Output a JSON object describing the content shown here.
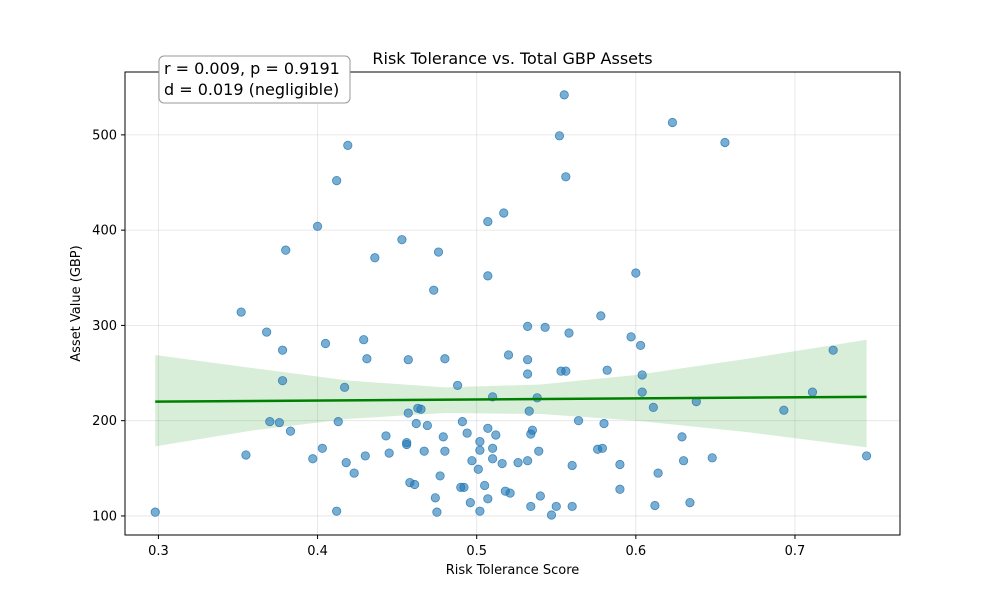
{
  "chart_data": {
    "type": "scatter",
    "title": "Risk Tolerance vs. Total GBP Assets",
    "xlabel": "Risk Tolerance Score",
    "ylabel": "Asset Value (GBP)",
    "xlim": [
      0.279,
      0.766
    ],
    "ylim": [
      80,
      566
    ],
    "xticks": [
      0.3,
      0.4,
      0.5,
      0.6,
      0.7
    ],
    "xtick_labels": [
      "0.3",
      "0.4",
      "0.5",
      "0.6",
      "0.7"
    ],
    "yticks": [
      100,
      200,
      300,
      400,
      500
    ],
    "ytick_labels": [
      "100",
      "200",
      "300",
      "400",
      "500"
    ],
    "grid": true,
    "point_color": "#1f77b4",
    "regression": {
      "color": "#008000",
      "ci_color": "#2ca02c",
      "x": [
        0.298,
        0.745
      ],
      "y": [
        220,
        225
      ],
      "ci": [
        {
          "x": 0.298,
          "lo": 173,
          "hi": 269
        },
        {
          "x": 0.36,
          "lo": 190,
          "hi": 255
        },
        {
          "x": 0.42,
          "lo": 202,
          "hi": 242
        },
        {
          "x": 0.48,
          "lo": 208,
          "hi": 235
        },
        {
          "x": 0.54,
          "lo": 207,
          "hi": 238
        },
        {
          "x": 0.6,
          "lo": 200,
          "hi": 248
        },
        {
          "x": 0.67,
          "lo": 188,
          "hi": 265
        },
        {
          "x": 0.745,
          "lo": 172,
          "hi": 285
        }
      ]
    },
    "annotation": {
      "line1": "r = 0.009, p = 0.9191",
      "line2": "d = 0.019 (negligible)",
      "position": "top-left"
    },
    "points": [
      {
        "x": 0.298,
        "y": 104
      },
      {
        "x": 0.352,
        "y": 314
      },
      {
        "x": 0.355,
        "y": 164
      },
      {
        "x": 0.368,
        "y": 293
      },
      {
        "x": 0.37,
        "y": 199
      },
      {
        "x": 0.376,
        "y": 198
      },
      {
        "x": 0.378,
        "y": 274
      },
      {
        "x": 0.378,
        "y": 242
      },
      {
        "x": 0.38,
        "y": 379
      },
      {
        "x": 0.383,
        "y": 189
      },
      {
        "x": 0.397,
        "y": 160
      },
      {
        "x": 0.4,
        "y": 404
      },
      {
        "x": 0.403,
        "y": 171
      },
      {
        "x": 0.405,
        "y": 281
      },
      {
        "x": 0.412,
        "y": 452
      },
      {
        "x": 0.413,
        "y": 199
      },
      {
        "x": 0.412,
        "y": 105
      },
      {
        "x": 0.417,
        "y": 235
      },
      {
        "x": 0.419,
        "y": 489
      },
      {
        "x": 0.418,
        "y": 156
      },
      {
        "x": 0.423,
        "y": 145
      },
      {
        "x": 0.429,
        "y": 285
      },
      {
        "x": 0.431,
        "y": 265
      },
      {
        "x": 0.43,
        "y": 163
      },
      {
        "x": 0.436,
        "y": 371
      },
      {
        "x": 0.443,
        "y": 184
      },
      {
        "x": 0.445,
        "y": 166
      },
      {
        "x": 0.453,
        "y": 390
      },
      {
        "x": 0.456,
        "y": 175
      },
      {
        "x": 0.456,
        "y": 177
      },
      {
        "x": 0.457,
        "y": 208
      },
      {
        "x": 0.457,
        "y": 264
      },
      {
        "x": 0.458,
        "y": 135
      },
      {
        "x": 0.461,
        "y": 133
      },
      {
        "x": 0.462,
        "y": 197
      },
      {
        "x": 0.463,
        "y": 213
      },
      {
        "x": 0.465,
        "y": 212
      },
      {
        "x": 0.467,
        "y": 168
      },
      {
        "x": 0.469,
        "y": 195
      },
      {
        "x": 0.473,
        "y": 337
      },
      {
        "x": 0.474,
        "y": 119
      },
      {
        "x": 0.475,
        "y": 104
      },
      {
        "x": 0.476,
        "y": 377
      },
      {
        "x": 0.477,
        "y": 142
      },
      {
        "x": 0.479,
        "y": 183
      },
      {
        "x": 0.48,
        "y": 168
      },
      {
        "x": 0.48,
        "y": 265
      },
      {
        "x": 0.488,
        "y": 237
      },
      {
        "x": 0.49,
        "y": 130
      },
      {
        "x": 0.491,
        "y": 199
      },
      {
        "x": 0.492,
        "y": 130
      },
      {
        "x": 0.494,
        "y": 187
      },
      {
        "x": 0.496,
        "y": 114
      },
      {
        "x": 0.497,
        "y": 158
      },
      {
        "x": 0.501,
        "y": 149
      },
      {
        "x": 0.502,
        "y": 178
      },
      {
        "x": 0.502,
        "y": 169
      },
      {
        "x": 0.502,
        "y": 105
      },
      {
        "x": 0.505,
        "y": 132
      },
      {
        "x": 0.507,
        "y": 409
      },
      {
        "x": 0.507,
        "y": 352
      },
      {
        "x": 0.507,
        "y": 192
      },
      {
        "x": 0.507,
        "y": 118
      },
      {
        "x": 0.51,
        "y": 225
      },
      {
        "x": 0.51,
        "y": 171
      },
      {
        "x": 0.51,
        "y": 160
      },
      {
        "x": 0.512,
        "y": 185
      },
      {
        "x": 0.516,
        "y": 155
      },
      {
        "x": 0.517,
        "y": 418
      },
      {
        "x": 0.518,
        "y": 126
      },
      {
        "x": 0.52,
        "y": 269
      },
      {
        "x": 0.521,
        "y": 124
      },
      {
        "x": 0.526,
        "y": 156
      },
      {
        "x": 0.532,
        "y": 299
      },
      {
        "x": 0.532,
        "y": 264
      },
      {
        "x": 0.532,
        "y": 249
      },
      {
        "x": 0.532,
        "y": 158
      },
      {
        "x": 0.533,
        "y": 210
      },
      {
        "x": 0.534,
        "y": 186
      },
      {
        "x": 0.535,
        "y": 190
      },
      {
        "x": 0.534,
        "y": 110
      },
      {
        "x": 0.538,
        "y": 224
      },
      {
        "x": 0.539,
        "y": 168
      },
      {
        "x": 0.54,
        "y": 121
      },
      {
        "x": 0.543,
        "y": 298
      },
      {
        "x": 0.547,
        "y": 101
      },
      {
        "x": 0.55,
        "y": 110
      },
      {
        "x": 0.552,
        "y": 499
      },
      {
        "x": 0.553,
        "y": 252
      },
      {
        "x": 0.555,
        "y": 542
      },
      {
        "x": 0.556,
        "y": 252
      },
      {
        "x": 0.556,
        "y": 456
      },
      {
        "x": 0.558,
        "y": 292
      },
      {
        "x": 0.56,
        "y": 153
      },
      {
        "x": 0.56,
        "y": 110
      },
      {
        "x": 0.564,
        "y": 200
      },
      {
        "x": 0.576,
        "y": 170
      },
      {
        "x": 0.578,
        "y": 310
      },
      {
        "x": 0.579,
        "y": 171
      },
      {
        "x": 0.58,
        "y": 197
      },
      {
        "x": 0.582,
        "y": 253
      },
      {
        "x": 0.59,
        "y": 154
      },
      {
        "x": 0.59,
        "y": 128
      },
      {
        "x": 0.597,
        "y": 288
      },
      {
        "x": 0.6,
        "y": 355
      },
      {
        "x": 0.603,
        "y": 279
      },
      {
        "x": 0.604,
        "y": 248
      },
      {
        "x": 0.604,
        "y": 230
      },
      {
        "x": 0.611,
        "y": 214
      },
      {
        "x": 0.612,
        "y": 111
      },
      {
        "x": 0.614,
        "y": 145
      },
      {
        "x": 0.623,
        "y": 513
      },
      {
        "x": 0.629,
        "y": 183
      },
      {
        "x": 0.63,
        "y": 158
      },
      {
        "x": 0.634,
        "y": 114
      },
      {
        "x": 0.638,
        "y": 220
      },
      {
        "x": 0.648,
        "y": 161
      },
      {
        "x": 0.656,
        "y": 492
      },
      {
        "x": 0.693,
        "y": 211
      },
      {
        "x": 0.711,
        "y": 230
      },
      {
        "x": 0.724,
        "y": 274
      },
      {
        "x": 0.745,
        "y": 163
      }
    ]
  }
}
